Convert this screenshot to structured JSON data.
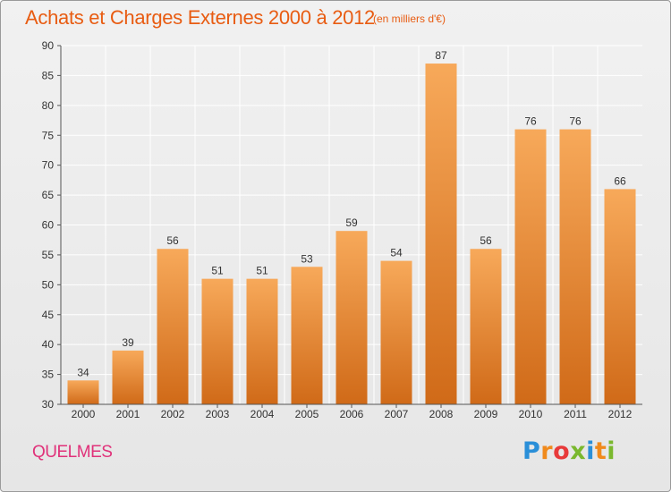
{
  "chart_data": {
    "type": "bar",
    "title": "Achats et Charges Externes 2000 à 2012",
    "subtitle": "(en milliers d'€)",
    "categories": [
      "2000",
      "2001",
      "2002",
      "2003",
      "2004",
      "2005",
      "2006",
      "2007",
      "2008",
      "2009",
      "2010",
      "2011",
      "2012"
    ],
    "values": [
      34,
      39,
      56,
      51,
      51,
      53,
      59,
      54,
      87,
      56,
      76,
      76,
      66
    ],
    "ylim": [
      30,
      90
    ],
    "yticks": [
      30,
      35,
      40,
      45,
      50,
      55,
      60,
      65,
      70,
      75,
      80,
      85,
      90
    ],
    "grid": true,
    "bar_color_top": "#f7a95a",
    "bar_color_bottom": "#d06a18"
  },
  "footer": {
    "commune": "QUELMES",
    "logo_letters": [
      "P",
      "r",
      "o",
      "x",
      "i",
      "t",
      "i"
    ],
    "logo_colors": [
      "#2a8fd8",
      "#f08a1c",
      "#e83a3a",
      "#7ab82e",
      "#2a8fd8",
      "#f08a1c",
      "#7ab82e"
    ]
  }
}
